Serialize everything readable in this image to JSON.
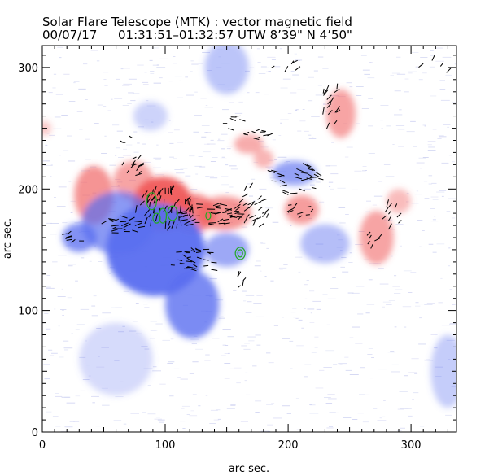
{
  "chart_data": {
    "type": "heatmap",
    "title": "Solar Flare Telescope (MTK) : vector magnetic field",
    "subtitle_date": "00/07/17",
    "subtitle_time": "01:31:51–01:32:57 UT",
    "subtitle_position": "W 8’39\"   N 4’50\"",
    "xlabel": "arc sec.",
    "ylabel": "arc sec.",
    "xlim": [
      0,
      337
    ],
    "ylim": [
      0,
      318
    ],
    "xticks": [
      0,
      100,
      200,
      300
    ],
    "yticks": [
      0,
      100,
      200,
      300
    ],
    "colors": {
      "positive": "#f05a5a",
      "negative": "#5a6ef0",
      "background_noise": "#c9cdf0",
      "vectors": "#000000",
      "contours": "#22aa22",
      "frame": "#000000"
    },
    "regions": [
      {
        "polarity": "positive",
        "x": 42,
        "y": 195,
        "rx": 16,
        "ry": 24,
        "strength": 0.65
      },
      {
        "polarity": "positive",
        "x": 74,
        "y": 207,
        "rx": 16,
        "ry": 16,
        "strength": 0.55
      },
      {
        "polarity": "positive",
        "x": 98,
        "y": 188,
        "rx": 24,
        "ry": 22,
        "strength": 0.95
      },
      {
        "polarity": "positive",
        "x": 123,
        "y": 180,
        "rx": 18,
        "ry": 16,
        "strength": 0.75
      },
      {
        "polarity": "positive",
        "x": 148,
        "y": 180,
        "rx": 22,
        "ry": 14,
        "strength": 0.65
      },
      {
        "polarity": "positive",
        "x": 168,
        "y": 237,
        "rx": 12,
        "ry": 8,
        "strength": 0.5
      },
      {
        "polarity": "positive",
        "x": 180,
        "y": 225,
        "rx": 8,
        "ry": 8,
        "strength": 0.45
      },
      {
        "polarity": "positive",
        "x": 211,
        "y": 183,
        "rx": 14,
        "ry": 12,
        "strength": 0.6
      },
      {
        "polarity": "positive",
        "x": 243,
        "y": 262,
        "rx": 12,
        "ry": 20,
        "strength": 0.55
      },
      {
        "polarity": "positive",
        "x": 272,
        "y": 160,
        "rx": 14,
        "ry": 22,
        "strength": 0.55
      },
      {
        "polarity": "positive",
        "x": 290,
        "y": 190,
        "rx": 10,
        "ry": 10,
        "strength": 0.4
      },
      {
        "polarity": "positive",
        "x": 2,
        "y": 250,
        "rx": 5,
        "ry": 6,
        "strength": 0.35
      },
      {
        "polarity": "negative",
        "x": 92,
        "y": 150,
        "rx": 40,
        "ry": 38,
        "strength": 0.95
      },
      {
        "polarity": "negative",
        "x": 62,
        "y": 172,
        "rx": 30,
        "ry": 26,
        "strength": 0.7
      },
      {
        "polarity": "negative",
        "x": 30,
        "y": 160,
        "rx": 14,
        "ry": 12,
        "strength": 0.75
      },
      {
        "polarity": "negative",
        "x": 122,
        "y": 105,
        "rx": 22,
        "ry": 28,
        "strength": 0.8
      },
      {
        "polarity": "negative",
        "x": 150,
        "y": 150,
        "rx": 18,
        "ry": 14,
        "strength": 0.6
      },
      {
        "polarity": "negative",
        "x": 205,
        "y": 213,
        "rx": 18,
        "ry": 10,
        "strength": 0.65
      },
      {
        "polarity": "negative",
        "x": 230,
        "y": 155,
        "rx": 20,
        "ry": 16,
        "strength": 0.45
      },
      {
        "polarity": "negative",
        "x": 150,
        "y": 300,
        "rx": 18,
        "ry": 22,
        "strength": 0.4
      },
      {
        "polarity": "negative",
        "x": 88,
        "y": 260,
        "rx": 14,
        "ry": 12,
        "strength": 0.3
      },
      {
        "polarity": "negative",
        "x": 60,
        "y": 60,
        "rx": 30,
        "ry": 30,
        "strength": 0.25
      },
      {
        "polarity": "negative",
        "x": 330,
        "y": 50,
        "rx": 14,
        "ry": 30,
        "strength": 0.35
      }
    ],
    "vector_clusters": [
      {
        "x": 100,
        "y": 185,
        "rx": 24,
        "ry": 18,
        "count": 60,
        "len": 5,
        "angle": 70
      },
      {
        "x": 136,
        "y": 178,
        "rx": 26,
        "ry": 10,
        "count": 40,
        "len": 5,
        "angle": 10
      },
      {
        "x": 125,
        "y": 140,
        "rx": 20,
        "ry": 12,
        "count": 30,
        "len": 4,
        "angle": -15
      },
      {
        "x": 65,
        "y": 170,
        "rx": 16,
        "ry": 8,
        "count": 20,
        "len": 5,
        "angle": 5
      },
      {
        "x": 75,
        "y": 220,
        "rx": 12,
        "ry": 10,
        "count": 14,
        "len": 4,
        "angle": 40
      },
      {
        "x": 170,
        "y": 185,
        "rx": 16,
        "ry": 18,
        "count": 26,
        "len": 5,
        "angle": 45
      },
      {
        "x": 205,
        "y": 208,
        "rx": 22,
        "ry": 14,
        "count": 28,
        "len": 5,
        "angle": -10
      },
      {
        "x": 235,
        "y": 270,
        "rx": 8,
        "ry": 20,
        "count": 16,
        "len": 5,
        "angle": 60
      },
      {
        "x": 176,
        "y": 245,
        "rx": 12,
        "ry": 6,
        "count": 10,
        "len": 4,
        "angle": 0
      },
      {
        "x": 25,
        "y": 160,
        "rx": 8,
        "ry": 6,
        "count": 8,
        "len": 4,
        "angle": 20
      },
      {
        "x": 285,
        "y": 180,
        "rx": 8,
        "ry": 12,
        "count": 10,
        "len": 5,
        "angle": 60
      },
      {
        "x": 270,
        "y": 160,
        "rx": 6,
        "ry": 8,
        "count": 6,
        "len": 4,
        "angle": 50
      },
      {
        "x": 210,
        "y": 185,
        "rx": 10,
        "ry": 8,
        "count": 10,
        "len": 4,
        "angle": 30
      },
      {
        "x": 155,
        "y": 255,
        "rx": 10,
        "ry": 6,
        "count": 6,
        "len": 4,
        "angle": 0
      },
      {
        "x": 160,
        "y": 125,
        "rx": 6,
        "ry": 6,
        "count": 5,
        "len": 4,
        "angle": 60
      },
      {
        "x": 70,
        "y": 240,
        "rx": 6,
        "ry": 4,
        "count": 4,
        "len": 4,
        "angle": -20
      },
      {
        "x": 320,
        "y": 300,
        "rx": 12,
        "ry": 14,
        "count": 4,
        "len": 4,
        "angle": 50
      },
      {
        "x": 200,
        "y": 300,
        "rx": 20,
        "ry": 10,
        "count": 5,
        "len": 4,
        "angle": 45
      }
    ],
    "contours": [
      {
        "x": 89,
        "y": 190,
        "rx": 4,
        "ry": 7
      },
      {
        "x": 98,
        "y": 178,
        "rx": 3,
        "ry": 6
      },
      {
        "x": 106,
        "y": 180,
        "rx": 4,
        "ry": 6
      },
      {
        "x": 93,
        "y": 176,
        "rx": 3,
        "ry": 4
      },
      {
        "x": 135,
        "y": 178,
        "rx": 2,
        "ry": 3
      },
      {
        "x": 161,
        "y": 147,
        "rx": 4,
        "ry": 5
      },
      {
        "x": 161,
        "y": 147,
        "rx": 2,
        "ry": 3
      }
    ]
  }
}
